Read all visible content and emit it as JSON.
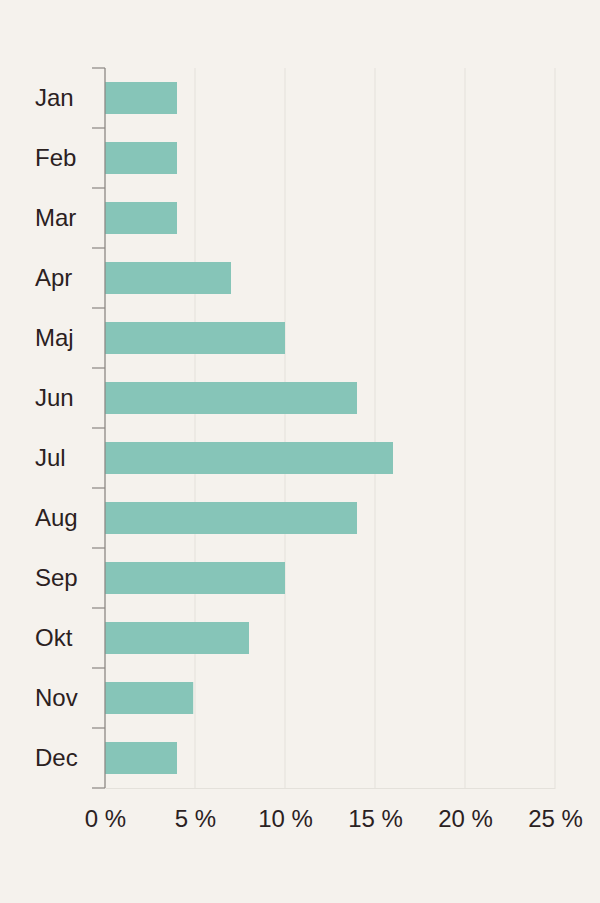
{
  "chart_data": {
    "type": "bar",
    "orientation": "horizontal",
    "categories": [
      "Jan",
      "Feb",
      "Mar",
      "Apr",
      "Maj",
      "Jun",
      "Jul",
      "Aug",
      "Sep",
      "Okt",
      "Nov",
      "Dec"
    ],
    "values": [
      4,
      4,
      4,
      7,
      10,
      14,
      16,
      14,
      10,
      8,
      4.9,
      4
    ],
    "color": "#86c5b8",
    "xlim": [
      0,
      25
    ],
    "xticks": [
      {
        "value": 0,
        "label": "0 %"
      },
      {
        "value": 5,
        "label": "5 %"
      },
      {
        "value": 10,
        "label": "10 %"
      },
      {
        "value": 15,
        "label": "15 %"
      },
      {
        "value": 20,
        "label": "20 %"
      },
      {
        "value": 25,
        "label": "25 %"
      }
    ],
    "grid": true
  }
}
